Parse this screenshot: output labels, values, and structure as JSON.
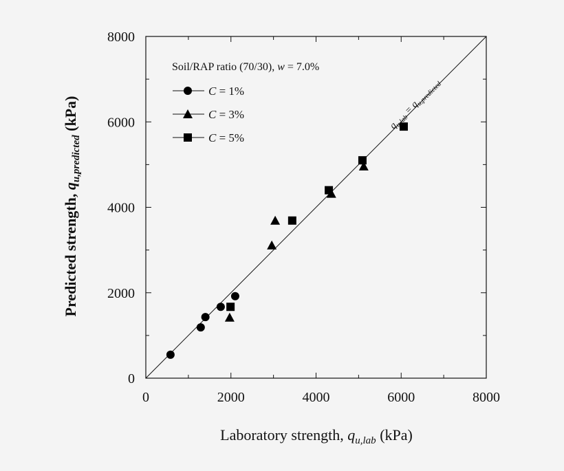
{
  "chart_data": {
    "type": "scatter",
    "xlabel": "Laboratory strength, ",
    "xlabel_sym": "q",
    "xlabel_sub": "u,lab",
    "xlabel_unit": " (kPa)",
    "ylabel": "Predicted strength, ",
    "ylabel_sym": "q",
    "ylabel_sub": "u,predicted",
    "ylabel_unit": " (kPa)",
    "xlim": [
      0,
      8000
    ],
    "ylim": [
      0,
      8000
    ],
    "xticks": [
      "0",
      "2000",
      "4000",
      "6000",
      "8000"
    ],
    "yticks": [
      "0",
      "2000",
      "4000",
      "6000",
      "8000"
    ],
    "grid": false,
    "legend_title": "Soil/RAP ratio (70/30), ",
    "legend_title_sym": "w",
    "legend_title_val": " = 7.0%",
    "legend_position": "top-left",
    "line_label": "q_u,lab = q_u,predicted",
    "reference_line": {
      "x": [
        0,
        8000
      ],
      "y": [
        0,
        8000
      ]
    },
    "series": [
      {
        "name": "C = 1%",
        "sym": "C",
        "val": " = 1%",
        "marker": "circle",
        "x": [
          580,
          1290,
          1400,
          1760,
          2100
        ],
        "y": [
          550,
          1190,
          1430,
          1670,
          1920
        ]
      },
      {
        "name": "C = 3%",
        "sym": "C",
        "val": " = 3%",
        "marker": "triangle",
        "x": [
          1970,
          2960,
          3040,
          4360,
          5120
        ],
        "y": [
          1420,
          3110,
          3690,
          4320,
          4960
        ]
      },
      {
        "name": "C = 5%",
        "sym": "C",
        "val": " = 5%",
        "marker": "square",
        "x": [
          1990,
          3440,
          4300,
          5090,
          6060
        ],
        "y": [
          1670,
          3690,
          4400,
          5100,
          5890
        ]
      }
    ]
  }
}
